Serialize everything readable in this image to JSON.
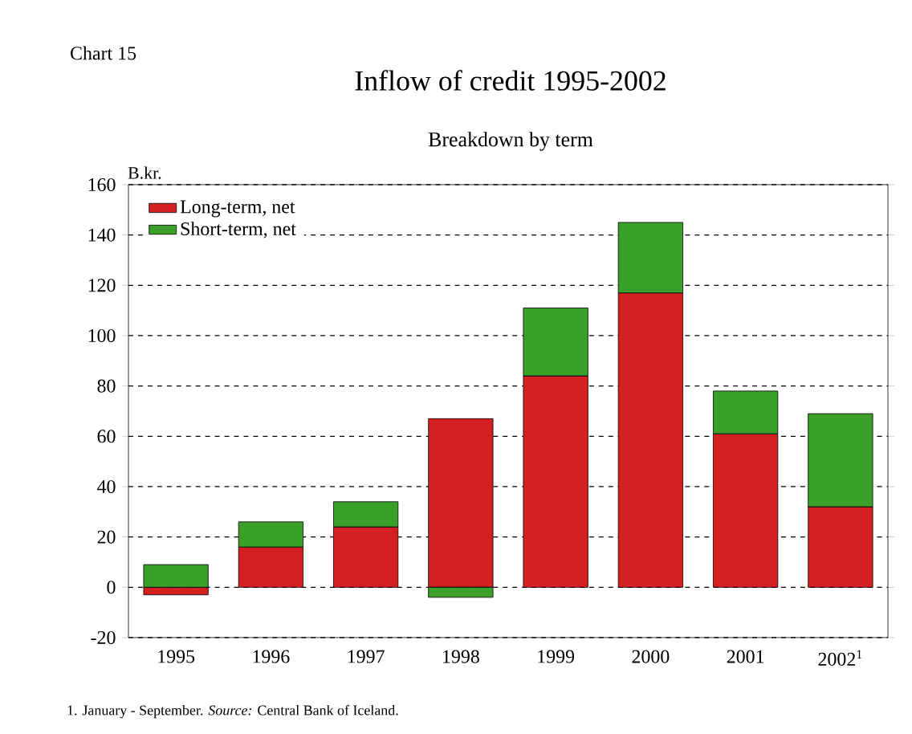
{
  "chart_data": {
    "type": "bar",
    "stacked": true,
    "title": "Inflow of credit 1995-2002",
    "subtitle": "Breakdown by term",
    "ylabel": "B.kr.",
    "categories": [
      "1995",
      "1996",
      "1997",
      "1998",
      "1999",
      "2000",
      "2001",
      "2002$^{1}$"
    ],
    "series": [
      {
        "name": "Long-term, net",
        "color": "#d42020",
        "values": [
          -3,
          16,
          24,
          67,
          84,
          117,
          61,
          32
        ]
      },
      {
        "name": "Short-term, net",
        "color": "#3aa02a",
        "values": [
          9,
          10,
          10,
          -4,
          27,
          28,
          17,
          37
        ]
      }
    ],
    "ylim": [
      -20,
      160
    ],
    "yticks": [
      -20,
      0,
      20,
      40,
      60,
      80,
      100,
      120,
      140,
      160
    ],
    "grid": "y",
    "legend": "top left",
    "annotations": [
      "Chart 15",
      "1. January - September. *Source:* Central Bank of Iceland."
    ]
  }
}
